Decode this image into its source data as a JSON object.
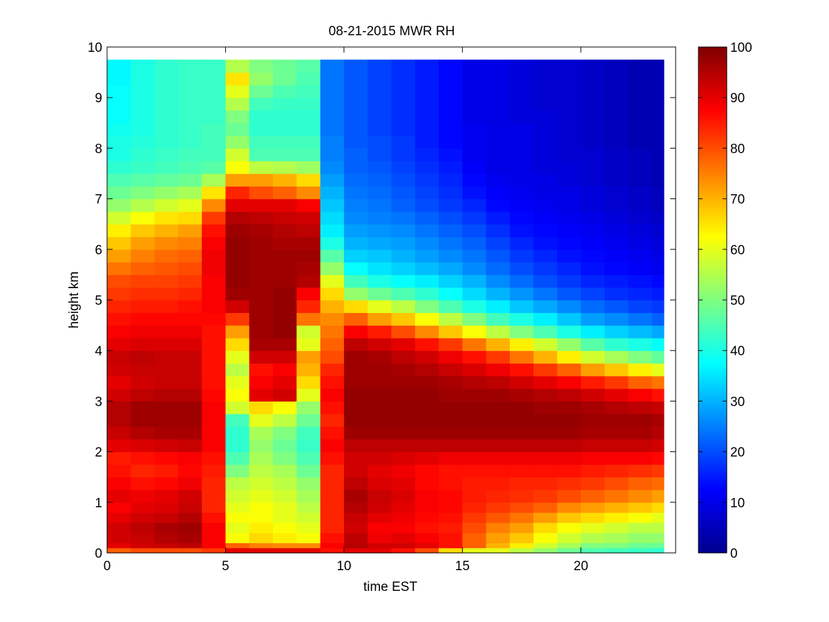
{
  "chart_data": {
    "type": "heatmap",
    "title": "08-21-2015 MWR RH",
    "xlabel": "time EST",
    "ylabel": "height km",
    "xlim": [
      0,
      24
    ],
    "ylim": [
      0,
      10
    ],
    "x_ticks": [
      0,
      5,
      10,
      15,
      20
    ],
    "y_ticks": [
      0,
      1,
      2,
      3,
      4,
      5,
      6,
      7,
      8,
      9,
      10
    ],
    "x_tick_labels": [
      "0",
      "5",
      "10",
      "15",
      "20"
    ],
    "y_tick_labels": [
      "0",
      "1",
      "2",
      "3",
      "4",
      "5",
      "6",
      "7",
      "8",
      "9",
      "10"
    ],
    "colorbar": {
      "colormap": "jet",
      "range": [
        0,
        100
      ],
      "ticks": [
        0,
        10,
        20,
        30,
        40,
        50,
        60,
        70,
        80,
        90,
        100
      ],
      "tick_labels": [
        "0",
        "10",
        "20",
        "30",
        "40",
        "50",
        "60",
        "70",
        "80",
        "90",
        "100"
      ]
    },
    "grid": false,
    "x": [
      0,
      1,
      2,
      3,
      4,
      5,
      6,
      7,
      8,
      9,
      10,
      11,
      12,
      13,
      14,
      15,
      16,
      17,
      18,
      19,
      20,
      21,
      22,
      23
    ],
    "y": [
      0.0,
      0.1,
      0.2,
      0.4,
      0.6,
      0.8,
      1.0,
      1.25,
      1.5,
      1.75,
      2.0,
      2.25,
      2.5,
      2.75,
      3.0,
      3.25,
      3.5,
      3.75,
      4.0,
      4.25,
      4.5,
      4.75,
      5.0,
      5.25,
      5.5,
      5.75,
      6.0,
      6.25,
      6.5,
      6.75,
      7.0,
      7.25,
      7.5,
      7.75,
      8.0,
      8.25,
      8.5,
      8.75,
      9.0,
      9.25,
      9.5
    ],
    "values_note_time_columns": "each row below is one time column (x index), values listed from lowest height upward",
    "z": [
      [
        78,
        90,
        92,
        92,
        90,
        88,
        90,
        88,
        86,
        85,
        90,
        93,
        95,
        95,
        92,
        90,
        92,
        93,
        90,
        88,
        86,
        84,
        82,
        80,
        76,
        72,
        68,
        64,
        58,
        52,
        48,
        45,
        42,
        40,
        40,
        39,
        38,
        38,
        38,
        37,
        37
      ],
      [
        80,
        92,
        93,
        94,
        92,
        90,
        89,
        86,
        84,
        86,
        91,
        95,
        97,
        97,
        94,
        92,
        93,
        94,
        91,
        89,
        87,
        85,
        83,
        81,
        78,
        75,
        72,
        68,
        62,
        55,
        50,
        46,
        43,
        42,
        41,
        40,
        40,
        40,
        40,
        40,
        40
      ],
      [
        80,
        93,
        95,
        96,
        93,
        91,
        90,
        87,
        85,
        87,
        92,
        96,
        97,
        97,
        95,
        93,
        93,
        93,
        91,
        89,
        87,
        85,
        83,
        81,
        79,
        77,
        74,
        70,
        65,
        58,
        52,
        47,
        44,
        43,
        42,
        42,
        42,
        42,
        42,
        42,
        42
      ],
      [
        80,
        94,
        96,
        97,
        95,
        93,
        92,
        89,
        87,
        88,
        93,
        96,
        97,
        97,
        95,
        93,
        93,
        93,
        91,
        89,
        87,
        86,
        84,
        82,
        80,
        78,
        75,
        72,
        66,
        60,
        54,
        48,
        45,
        44,
        43,
        43,
        43,
        43,
        43,
        43,
        43
      ],
      [
        82,
        88,
        88,
        88,
        86,
        84,
        84,
        84,
        85,
        86,
        88,
        88,
        88,
        88,
        87,
        86,
        86,
        86,
        86,
        86,
        87,
        88,
        88,
        88,
        89,
        89,
        88,
        86,
        82,
        74,
        65,
        54,
        46,
        44,
        44,
        44,
        43,
        43,
        43,
        43,
        43
      ],
      [
        90,
        78,
        62,
        60,
        62,
        60,
        58,
        56,
        50,
        45,
        42,
        42,
        44,
        58,
        62,
        60,
        56,
        60,
        66,
        72,
        82,
        92,
        97,
        98,
        98,
        98,
        98,
        97,
        95,
        90,
        84,
        72,
        62,
        58,
        52,
        48,
        50,
        55,
        60,
        65,
        55
      ],
      [
        90,
        75,
        66,
        64,
        62,
        62,
        60,
        58,
        56,
        54,
        52,
        54,
        60,
        66,
        90,
        88,
        86,
        92,
        96,
        97,
        97,
        97,
        97,
        97,
        97,
        97,
        97,
        96,
        94,
        90,
        80,
        72,
        56,
        45,
        44,
        42,
        42,
        44,
        48,
        52,
        50
      ],
      [
        90,
        74,
        64,
        62,
        60,
        60,
        58,
        56,
        54,
        50,
        48,
        50,
        56,
        62,
        92,
        90,
        88,
        92,
        96,
        98,
        98,
        98,
        98,
        97,
        97,
        97,
        96,
        95,
        93,
        90,
        78,
        70,
        55,
        45,
        44,
        42,
        42,
        43,
        45,
        48,
        48
      ],
      [
        90,
        74,
        62,
        60,
        58,
        56,
        54,
        52,
        48,
        45,
        43,
        44,
        48,
        52,
        60,
        66,
        70,
        72,
        60,
        58,
        76,
        84,
        88,
        95,
        96,
        97,
        96,
        94,
        92,
        88,
        74,
        66,
        53,
        45,
        44,
        42,
        42,
        43,
        44,
        45,
        46
      ],
      [
        86,
        88,
        86,
        84,
        84,
        84,
        84,
        84,
        84,
        86,
        88,
        86,
        84,
        86,
        88,
        86,
        84,
        80,
        78,
        76,
        74,
        70,
        66,
        60,
        52,
        46,
        40,
        36,
        34,
        32,
        30,
        28,
        26,
        25,
        25,
        24,
        24,
        24,
        24,
        24,
        24
      ],
      [
        90,
        95,
        94,
        92,
        93,
        95,
        96,
        94,
        92,
        92,
        94,
        97,
        98,
        98,
        98,
        97,
        97,
        97,
        94,
        88,
        78,
        66,
        52,
        44,
        38,
        33,
        30,
        28,
        26,
        25,
        24,
        23,
        22,
        22,
        21,
        21,
        21,
        21,
        21,
        21,
        21
      ],
      [
        90,
        92,
        89,
        88,
        90,
        92,
        93,
        91,
        90,
        92,
        94,
        97,
        98,
        98,
        98,
        97,
        97,
        96,
        92,
        85,
        72,
        60,
        48,
        40,
        35,
        32,
        29,
        27,
        25,
        24,
        23,
        22,
        21,
        20,
        20,
        19,
        19,
        19,
        19,
        19,
        19
      ],
      [
        86,
        92,
        90,
        88,
        89,
        90,
        91,
        90,
        89,
        91,
        94,
        97,
        98,
        98,
        98,
        97,
        96,
        94,
        90,
        80,
        68,
        56,
        45,
        38,
        33,
        30,
        28,
        26,
        24,
        22,
        21,
        20,
        19,
        18,
        18,
        17,
        17,
        17,
        17,
        17,
        17
      ],
      [
        80,
        90,
        88,
        86,
        87,
        88,
        88,
        87,
        87,
        90,
        94,
        97,
        98,
        98,
        98,
        97,
        95,
        92,
        86,
        74,
        62,
        50,
        42,
        36,
        31,
        28,
        26,
        24,
        22,
        20,
        19,
        18,
        17,
        16,
        15,
        15,
        15,
        15,
        15,
        15,
        15
      ],
      [
        66,
        86,
        86,
        85,
        86,
        87,
        87,
        86,
        86,
        89,
        94,
        97,
        98,
        98,
        97,
        96,
        93,
        89,
        82,
        68,
        56,
        45,
        38,
        33,
        29,
        26,
        24,
        22,
        20,
        18,
        17,
        16,
        15,
        14,
        13,
        13,
        13,
        13,
        13,
        13,
        13
      ],
      [
        60,
        78,
        78,
        80,
        82,
        84,
        85,
        85,
        86,
        89,
        94,
        97,
        98,
        98,
        97,
        95,
        91,
        86,
        76,
        62,
        50,
        40,
        34,
        30,
        26,
        24,
        22,
        20,
        18,
        16,
        14,
        13,
        12,
        11,
        11,
        11,
        10,
        10,
        10,
        10,
        10
      ],
      [
        60,
        70,
        72,
        75,
        79,
        82,
        84,
        85,
        86,
        89,
        94,
        97,
        98,
        98,
        97,
        94,
        89,
        82,
        70,
        56,
        44,
        36,
        30,
        26,
        23,
        21,
        19,
        17,
        15,
        13,
        12,
        11,
        10,
        10,
        10,
        10,
        10,
        10,
        10,
        10,
        10
      ],
      [
        56,
        64,
        68,
        72,
        76,
        80,
        83,
        84,
        86,
        89,
        94,
        97,
        98,
        98,
        96,
        92,
        86,
        76,
        64,
        50,
        40,
        32,
        27,
        23,
        20,
        18,
        16,
        14,
        13,
        12,
        11,
        10,
        10,
        10,
        10,
        10,
        9,
        9,
        9,
        9,
        9
      ],
      [
        52,
        58,
        62,
        66,
        72,
        78,
        82,
        84,
        86,
        89,
        94,
        97,
        98,
        97,
        95,
        90,
        82,
        70,
        58,
        45,
        36,
        29,
        24,
        20,
        18,
        16,
        14,
        13,
        12,
        11,
        10,
        10,
        9,
        9,
        9,
        9,
        9,
        8,
        8,
        8,
        8
      ],
      [
        48,
        54,
        58,
        62,
        68,
        74,
        80,
        83,
        86,
        89,
        94,
        97,
        98,
        97,
        94,
        88,
        78,
        64,
        52,
        40,
        32,
        26,
        21,
        18,
        16,
        14,
        13,
        12,
        11,
        10,
        10,
        9,
        9,
        8,
        8,
        8,
        8,
        8,
        8,
        8,
        8
      ],
      [
        45,
        50,
        55,
        60,
        66,
        72,
        78,
        82,
        85,
        88,
        93,
        96,
        97,
        96,
        92,
        85,
        72,
        58,
        46,
        36,
        28,
        23,
        19,
        16,
        14,
        13,
        12,
        11,
        10,
        9,
        9,
        8,
        8,
        8,
        7,
        7,
        7,
        7,
        7,
        7,
        7
      ],
      [
        44,
        50,
        54,
        58,
        64,
        70,
        76,
        80,
        84,
        88,
        93,
        96,
        97,
        95,
        90,
        82,
        68,
        54,
        42,
        33,
        26,
        21,
        17,
        15,
        13,
        12,
        11,
        10,
        9,
        8,
        8,
        7,
        7,
        7,
        6,
        6,
        6,
        6,
        6,
        6,
        6
      ],
      [
        43,
        48,
        52,
        56,
        62,
        68,
        74,
        78,
        83,
        88,
        93,
        96,
        97,
        94,
        88,
        78,
        64,
        50,
        40,
        31,
        24,
        19,
        16,
        14,
        12,
        11,
        10,
        9,
        8,
        7,
        7,
        6,
        6,
        6,
        5,
        5,
        5,
        5,
        5,
        5,
        5
      ],
      [
        42,
        48,
        52,
        56,
        60,
        66,
        72,
        77,
        82,
        87,
        92,
        95,
        96,
        93,
        86,
        76,
        60,
        47,
        38,
        29,
        22,
        18,
        15,
        13,
        11,
        10,
        9,
        8,
        7,
        6,
        6,
        5,
        5,
        5,
        5,
        5,
        5,
        5,
        5,
        5,
        5
      ]
    ]
  }
}
